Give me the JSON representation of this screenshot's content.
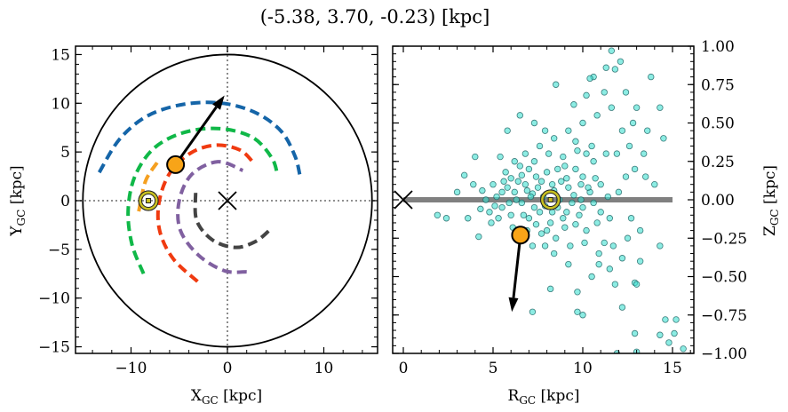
{
  "title": "(-5.38, 3.70, -0.23) [kpc]",
  "chart_data": [
    {
      "type": "line",
      "panel": "left",
      "xlabel": {
        "main": "X",
        "sub": "GC",
        "unit": " [kpc]"
      },
      "ylabel": {
        "main": "Y",
        "sub": "GC",
        "unit": " [kpc]"
      },
      "xlim": [
        -15.8,
        15.6
      ],
      "ylim": [
        -15.8,
        15.9
      ],
      "xticks": [
        -10,
        0,
        10
      ],
      "xtick_labels": [
        "−10",
        "0",
        "10"
      ],
      "yticks": [
        -15,
        -10,
        -5,
        0,
        5,
        10,
        15
      ],
      "ytick_labels": [
        "−15",
        "−10",
        "−5",
        "0",
        "5",
        "10",
        "15"
      ],
      "boundary_circle_radius": 15,
      "reference_lines": {
        "x": 0,
        "y": 0,
        "style": "dotted",
        "color": "#808080"
      },
      "series": [
        {
          "color": "#1565a8",
          "style": "dashed",
          "points": [
            [
              -13.3,
              2.9
            ],
            [
              -11.2,
              6.3
            ],
            [
              -8.3,
              8.7
            ],
            [
              -4.5,
              9.9
            ],
            [
              -0.5,
              10.0
            ],
            [
              3,
              9.0
            ],
            [
              5.6,
              7.1
            ],
            [
              7.0,
              4.6
            ],
            [
              7.5,
              2.7
            ]
          ]
        },
        {
          "color": "#10b848",
          "style": "dashed",
          "points": [
            [
              -8.7,
              -7.5
            ],
            [
              -9.9,
              -4.5
            ],
            [
              -10.3,
              -1.0
            ],
            [
              -9.6,
              2.5
            ],
            [
              -7.6,
              5.4
            ],
            [
              -4.5,
              7.0
            ],
            [
              -0.8,
              7.4
            ],
            [
              2.6,
              6.5
            ],
            [
              4.6,
              4.4
            ],
            [
              5.2,
              2.6
            ]
          ]
        },
        {
          "color": "#f03a10",
          "style": "dashed",
          "points": [
            [
              -3.1,
              -8.3
            ],
            [
              -5.6,
              -6.0
            ],
            [
              -7.0,
              -3.2
            ],
            [
              -7.1,
              -0.2
            ],
            [
              -6.0,
              2.8
            ],
            [
              -3.8,
              4.9
            ],
            [
              -1.2,
              5.7
            ],
            [
              1.3,
              5.2
            ],
            [
              2.7,
              3.9
            ]
          ]
        },
        {
          "color": "#8060a0",
          "style": "dashed",
          "points": [
            [
              2.0,
              -7.3
            ],
            [
              -0.3,
              -7.2
            ],
            [
              -3.0,
              -5.6
            ],
            [
              -4.9,
              -3.0
            ],
            [
              -5.0,
              0.0
            ],
            [
              -3.7,
              2.7
            ],
            [
              -1.0,
              4.0
            ],
            [
              1.6,
              3.1
            ]
          ]
        },
        {
          "color": "#444444",
          "style": "dashed",
          "points": [
            [
              -3.3,
              0.8
            ],
            [
              -3.2,
              -2.0
            ],
            [
              -1.6,
              -4.0
            ],
            [
              0.8,
              -4.8
            ],
            [
              2.9,
              -4.2
            ],
            [
              4.4,
              -3.0
            ]
          ]
        },
        {
          "color": "#f5a020",
          "style": "dashed",
          "points": [
            [
              -7.3,
              3.9
            ],
            [
              -8.5,
              2.0
            ],
            [
              -9.2,
              -1.1
            ]
          ]
        }
      ],
      "markers": {
        "object": {
          "x": -5.38,
          "y": 3.7,
          "color": "#f8a418"
        },
        "velocity_arrow_tip": {
          "x": -0.3,
          "y": 10.8
        },
        "sun": {
          "x": -8.2,
          "y": 0.0,
          "color": "#c8c020"
        },
        "galactic_center": {
          "x": 0,
          "y": 0
        }
      }
    },
    {
      "type": "scatter",
      "panel": "right",
      "xlabel": {
        "main": "R",
        "sub": "GC",
        "unit": " [kpc]"
      },
      "ylabel": {
        "main": "Z",
        "sub": "GC",
        "unit": " [kpc]"
      },
      "xlim": [
        -0.6,
        16.2
      ],
      "ylim": [
        -1.0,
        1.0
      ],
      "xticks": [
        0,
        5,
        10,
        15
      ],
      "xtick_labels": [
        "0",
        "5",
        "10",
        "15"
      ],
      "yticks": [
        -1.0,
        -0.75,
        -0.5,
        -0.25,
        0,
        0.25,
        0.5,
        0.75,
        1.0
      ],
      "ytick_labels": [
        "−1.00",
        "−0.75",
        "−0.50",
        "−0.25",
        "0.00",
        "0.25",
        "0.50",
        "0.75",
        "1.00"
      ],
      "disk_line": {
        "z": 0,
        "r_range": [
          0,
          15
        ],
        "color": "#808080"
      },
      "point_color": "#40e0d0",
      "point_edge": "#1a6060",
      "points": [
        [
          5.2,
          0.02
        ],
        [
          5.5,
          -0.05
        ],
        [
          5.8,
          0.08
        ],
        [
          6,
          -0.1
        ],
        [
          6.2,
          0.05
        ],
        [
          6.4,
          0.12
        ],
        [
          6.6,
          -0.02
        ],
        [
          6.8,
          0.1
        ],
        [
          7,
          -0.12
        ],
        [
          7.2,
          0.04
        ],
        [
          7.4,
          0.15
        ],
        [
          7.6,
          -0.08
        ],
        [
          7.8,
          0.02
        ],
        [
          8,
          0.18
        ],
        [
          8.2,
          -0.15
        ],
        [
          8.4,
          0.06
        ],
        [
          8.6,
          -0.05
        ],
        [
          8.8,
          0.12
        ],
        [
          9,
          -0.18
        ],
        [
          9.2,
          0.08
        ],
        [
          9.4,
          -0.02
        ],
        [
          9.6,
          0.2
        ],
        [
          9.8,
          -0.1
        ],
        [
          10,
          0.15
        ],
        [
          10.2,
          -0.2
        ],
        [
          10.4,
          0.05
        ],
        [
          10.6,
          0.25
        ],
        [
          10.8,
          -0.15
        ],
        [
          11,
          0.1
        ],
        [
          11.2,
          -0.28
        ],
        [
          4.6,
          0.0
        ],
        [
          4.8,
          -0.08
        ],
        [
          5,
          0.1
        ],
        [
          5.3,
          -0.12
        ],
        [
          5.7,
          0.18
        ],
        [
          6.1,
          -0.18
        ],
        [
          6.5,
          0.22
        ],
        [
          6.9,
          -0.2
        ],
        [
          7.3,
          0.25
        ],
        [
          7.7,
          -0.22
        ],
        [
          8.1,
          0.3
        ],
        [
          8.5,
          -0.25
        ],
        [
          8.9,
          0.28
        ],
        [
          9.3,
          -0.3
        ],
        [
          9.7,
          0.32
        ],
        [
          10.1,
          -0.28
        ],
        [
          10.5,
          0.35
        ],
        [
          10.9,
          -0.35
        ],
        [
          11.3,
          0.3
        ],
        [
          11.7,
          -0.3
        ],
        [
          6.3,
          0.0
        ],
        [
          7.1,
          0.02
        ],
        [
          7.9,
          -0.04
        ],
        [
          8.7,
          0.0
        ],
        [
          9.5,
          0.03
        ],
        [
          6.7,
          -0.1
        ],
        [
          7.5,
          0.08
        ],
        [
          8.3,
          0.1
        ],
        [
          9.1,
          -0.08
        ],
        [
          9.9,
          0.0
        ],
        [
          5.9,
          -0.02
        ],
        [
          7.3,
          -0.05
        ],
        [
          8.9,
          -0.12
        ],
        [
          10.3,
          0.08
        ],
        [
          6.0,
          0.14
        ],
        [
          7.0,
          0.2
        ],
        [
          8.0,
          -0.2
        ],
        [
          9.0,
          0.22
        ],
        [
          10.0,
          -0.05
        ],
        [
          11.0,
          -0.08
        ],
        [
          4.4,
          0.06
        ],
        [
          4.9,
          -0.15
        ],
        [
          5.6,
          0.12
        ],
        [
          6.2,
          -0.22
        ],
        [
          6.6,
          0.16
        ],
        [
          7.4,
          -0.16
        ],
        [
          8.6,
          0.2
        ],
        [
          9.6,
          -0.16
        ],
        [
          10.6,
          -0.02
        ],
        [
          11.4,
          0.02
        ],
        [
          5.1,
          -0.04
        ],
        [
          5.5,
          0.05
        ],
        [
          6.9,
          0.06
        ],
        [
          7.7,
          0.12
        ],
        [
          8.3,
          -0.08
        ],
        [
          9.1,
          0.14
        ],
        [
          9.9,
          0.1
        ],
        [
          10.7,
          0.14
        ],
        [
          11.5,
          -0.12
        ],
        [
          12,
          0.05
        ],
        [
          6.8,
          0.3
        ],
        [
          7.6,
          0.35
        ],
        [
          8.4,
          0.4
        ],
        [
          9.2,
          0.45
        ],
        [
          10,
          0.5
        ],
        [
          10.8,
          0.55
        ],
        [
          11.6,
          0.6
        ],
        [
          12.2,
          0.45
        ],
        [
          12.8,
          0.5
        ],
        [
          11.2,
          0.7
        ],
        [
          10.6,
          0.8
        ],
        [
          11.8,
          0.85
        ],
        [
          12.4,
          0.7
        ],
        [
          13,
          0.6
        ],
        [
          11.6,
          0.97
        ],
        [
          12.1,
          0.9
        ],
        [
          11.3,
          0.86
        ],
        [
          10.4,
          0.79
        ],
        [
          8.5,
          0.75
        ],
        [
          6.5,
          0.55
        ],
        [
          7.3,
          0.5
        ],
        [
          6.2,
          0.25
        ],
        [
          5.4,
          0.28
        ],
        [
          5.8,
          0.45
        ],
        [
          9.5,
          0.62
        ],
        [
          10.2,
          0.68
        ],
        [
          12.6,
          0.35
        ],
        [
          13.4,
          0.3
        ],
        [
          12.9,
          0.2
        ],
        [
          13.5,
          0.15
        ],
        [
          3.4,
          0.16
        ],
        [
          2.4,
          -0.12
        ],
        [
          1.9,
          -0.1
        ],
        [
          3.0,
          0.05
        ],
        [
          4.0,
          0.28
        ],
        [
          4.2,
          -0.24
        ],
        [
          3.6,
          -0.12
        ],
        [
          3.9,
          0.1
        ],
        [
          4.3,
          -0.06
        ],
        [
          14,
          0.1
        ],
        [
          12.9,
          -0.54
        ],
        [
          13,
          -0.55
        ],
        [
          14.6,
          -0.78
        ],
        [
          15.2,
          -0.78
        ],
        [
          14.3,
          -0.88
        ],
        [
          15.1,
          -0.87
        ],
        [
          15.6,
          -0.97
        ],
        [
          14.8,
          -0.93
        ],
        [
          12.9,
          -0.87
        ],
        [
          12.2,
          -0.7
        ],
        [
          11.9,
          -1.0
        ],
        [
          13,
          -0.99
        ],
        [
          10,
          -0.75
        ],
        [
          9.7,
          -0.73
        ],
        [
          7.2,
          -0.73
        ],
        [
          8.2,
          -0.58
        ],
        [
          9.7,
          -0.6
        ],
        [
          10.5,
          -0.5
        ],
        [
          11.5,
          -0.45
        ],
        [
          13.2,
          -0.4
        ],
        [
          14.3,
          -0.3
        ],
        [
          14.5,
          0.4
        ],
        [
          14.3,
          0.6
        ],
        [
          13.8,
          0.8
        ],
        [
          12.5,
          -0.25
        ],
        [
          12.2,
          -0.38
        ],
        [
          11.8,
          -0.55
        ],
        [
          10.9,
          -0.42
        ],
        [
          9.2,
          -0.42
        ],
        [
          8.4,
          -0.35
        ],
        [
          7.9,
          -0.3
        ],
        [
          7.2,
          -0.3
        ],
        [
          12.4,
          0.15
        ],
        [
          12.7,
          -0.12
        ],
        [
          13.2,
          -0.2
        ],
        [
          13.6,
          0.45
        ],
        [
          11.9,
          0.3
        ],
        [
          10.2,
          0.3
        ],
        [
          9.6,
          0.38
        ],
        [
          7.9,
          0.45
        ]
      ],
      "markers": {
        "object": {
          "x": 6.53,
          "y": -0.23,
          "color": "#f8a418"
        },
        "velocity_arrow_tip": {
          "x": 6.05,
          "y": -0.73
        },
        "sun": {
          "x": 8.2,
          "y": 0.0,
          "color": "#c8c020"
        },
        "galactic_center": {
          "x": 0,
          "y": 0
        }
      }
    }
  ]
}
